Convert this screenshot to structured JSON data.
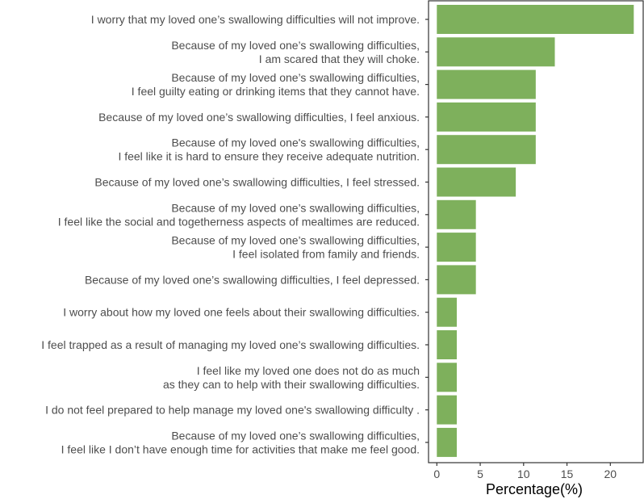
{
  "chart_data": {
    "type": "bar",
    "orientation": "horizontal",
    "title": "",
    "xlabel": "Percentage(%)",
    "ylabel": "",
    "xlim": [
      0,
      23.5
    ],
    "xticks": [
      0,
      5,
      10,
      15,
      20
    ],
    "grid": false,
    "bar_color": "#7eb05c",
    "categories": [
      [
        "I worry that my loved one’s swallowing difficulties will not improve."
      ],
      [
        "Because of my loved one’s swallowing difficulties,",
        "I am scared that they will choke."
      ],
      [
        "Because of my loved one’s swallowing difficulties,",
        "I feel guilty eating or drinking items that they cannot have."
      ],
      [
        "Because of my loved one’s swallowing difficulties, I feel anxious."
      ],
      [
        "Because of my loved one's swallowing difficulties,",
        "I feel like it is hard to ensure they receive adequate nutrition."
      ],
      [
        "Because of my loved one’s swallowing difficulties, I feel stressed."
      ],
      [
        "Because of my loved one’s swallowing difficulties,",
        "I feel like the social and togetherness aspects of mealtimes are reduced."
      ],
      [
        "Because of my loved one’s swallowing difficulties,",
        "I feel isolated from family and friends."
      ],
      [
        "Because of my loved one’s swallowing difficulties, I feel depressed."
      ],
      [
        "I worry about how my loved one feels about their swallowing difficulties."
      ],
      [
        "I feel trapped as a result of managing my loved one’s swallowing difficulties."
      ],
      [
        "I feel like my loved one does not do as much",
        "as they can to help with their swallowing difficulties."
      ],
      [
        "I do not feel prepared to help manage my loved one's swallowing difficulty ."
      ],
      [
        "Because of my loved one’s swallowing difficulties,",
        "I feel like I don’t have enough time for activities that make me feel good."
      ]
    ],
    "values": [
      22.7,
      13.6,
      11.4,
      11.4,
      11.4,
      9.1,
      4.5,
      4.5,
      4.5,
      2.3,
      2.3,
      2.3,
      2.3,
      2.3
    ]
  }
}
